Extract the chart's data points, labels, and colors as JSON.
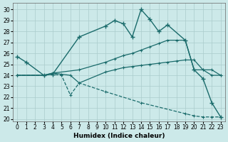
{
  "xlabel": "Humidex (Indice chaleur)",
  "xlim": [
    -0.5,
    23.5
  ],
  "ylim": [
    19.8,
    30.6
  ],
  "yticks": [
    20,
    21,
    22,
    23,
    24,
    25,
    26,
    27,
    28,
    29,
    30
  ],
  "xticks": [
    0,
    1,
    2,
    3,
    4,
    5,
    6,
    7,
    8,
    9,
    10,
    11,
    12,
    13,
    14,
    15,
    16,
    17,
    18,
    19,
    20,
    21,
    22,
    23
  ],
  "bg_color": "#cce9e9",
  "grid_color": "#aacccc",
  "line_color": "#1a6b6b",
  "line1": {
    "x": [
      0,
      1,
      3,
      4,
      7,
      10,
      11,
      12,
      13,
      14,
      15,
      16,
      17,
      19,
      20,
      21,
      22,
      23
    ],
    "y": [
      25.7,
      25.2,
      24.0,
      24.1,
      27.5,
      28.5,
      29.0,
      28.7,
      27.5,
      30.0,
      29.1,
      28.0,
      28.6,
      27.2,
      24.5,
      23.7,
      21.5,
      20.2
    ]
  },
  "line2": {
    "x": [
      0,
      3,
      4,
      7,
      10,
      11,
      12,
      13,
      14,
      15,
      16,
      17,
      18,
      19,
      20,
      21,
      22,
      23
    ],
    "y": [
      24.0,
      24.0,
      24.2,
      24.5,
      25.2,
      25.5,
      25.8,
      26.0,
      26.3,
      26.6,
      26.9,
      27.2,
      27.2,
      27.2,
      24.5,
      24.5,
      24.5,
      24.0
    ]
  },
  "line3": {
    "x": [
      0,
      3,
      4,
      5,
      6,
      7,
      10,
      11,
      12,
      13,
      14,
      15,
      16,
      17,
      18,
      19,
      20,
      21,
      22,
      23
    ],
    "y": [
      24.0,
      24.0,
      24.2,
      24.1,
      24.0,
      23.3,
      24.3,
      24.5,
      24.7,
      24.8,
      24.9,
      25.0,
      25.1,
      25.2,
      25.3,
      25.4,
      25.4,
      24.5,
      24.0,
      24.0
    ]
  },
  "line4": {
    "x": [
      0,
      3,
      4,
      5,
      6,
      7,
      10,
      14,
      19,
      20,
      21,
      22,
      23
    ],
    "y": [
      24.0,
      24.0,
      24.1,
      24.0,
      22.2,
      23.3,
      22.5,
      21.5,
      20.5,
      20.3,
      20.2,
      20.2,
      20.2
    ]
  }
}
